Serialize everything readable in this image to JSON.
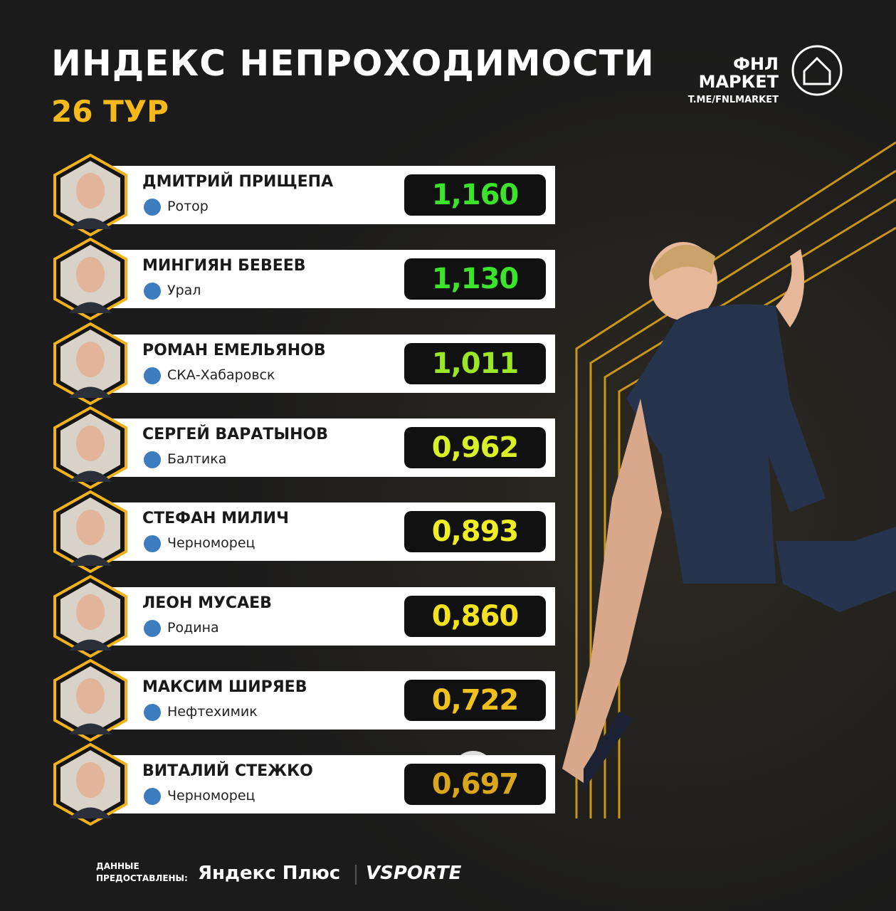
{
  "header": {
    "title": "ИНДЕКС НЕПРОХОДИМОСТИ",
    "subtitle": "26 ТУР"
  },
  "brand": {
    "line1": "ФНЛ",
    "line2": "МАРКЕТ",
    "link": "T.ME/FNLMARKET"
  },
  "rows": [
    {
      "name": "ДМИТРИЙ ПРИЩЕПА",
      "club": "Ротор",
      "value": "1,160"
    },
    {
      "name": "МИНГИЯН БЕВЕЕВ",
      "club": "Урал",
      "value": "1,130"
    },
    {
      "name": "РОМАН ЕМЕЛЬЯНОВ",
      "club": "СКА-Хабаровск",
      "value": "1,011"
    },
    {
      "name": "СЕРГЕЙ ВАРАТЫНОВ",
      "club": "Балтика",
      "value": "0,962"
    },
    {
      "name": "СТЕФАН МИЛИЧ",
      "club": "Черноморец",
      "value": "0,893"
    },
    {
      "name": "ЛЕОН МУСАЕВ",
      "club": "Родина",
      "value": "0,860"
    },
    {
      "name": "МАКСИМ ШИРЯЕВ",
      "club": "Нефтехимик",
      "value": "0,722"
    },
    {
      "name": "ВИТАЛИЙ СТЕЖКО",
      "club": "Черноморец",
      "value": "0,697"
    }
  ],
  "footer": {
    "credit1": "ДАННЫЕ",
    "credit2": "ПРЕДОСТАВЛЕНЫ:",
    "partner1": "Яндекс Плюс",
    "partner2": "VSPORTE"
  }
}
